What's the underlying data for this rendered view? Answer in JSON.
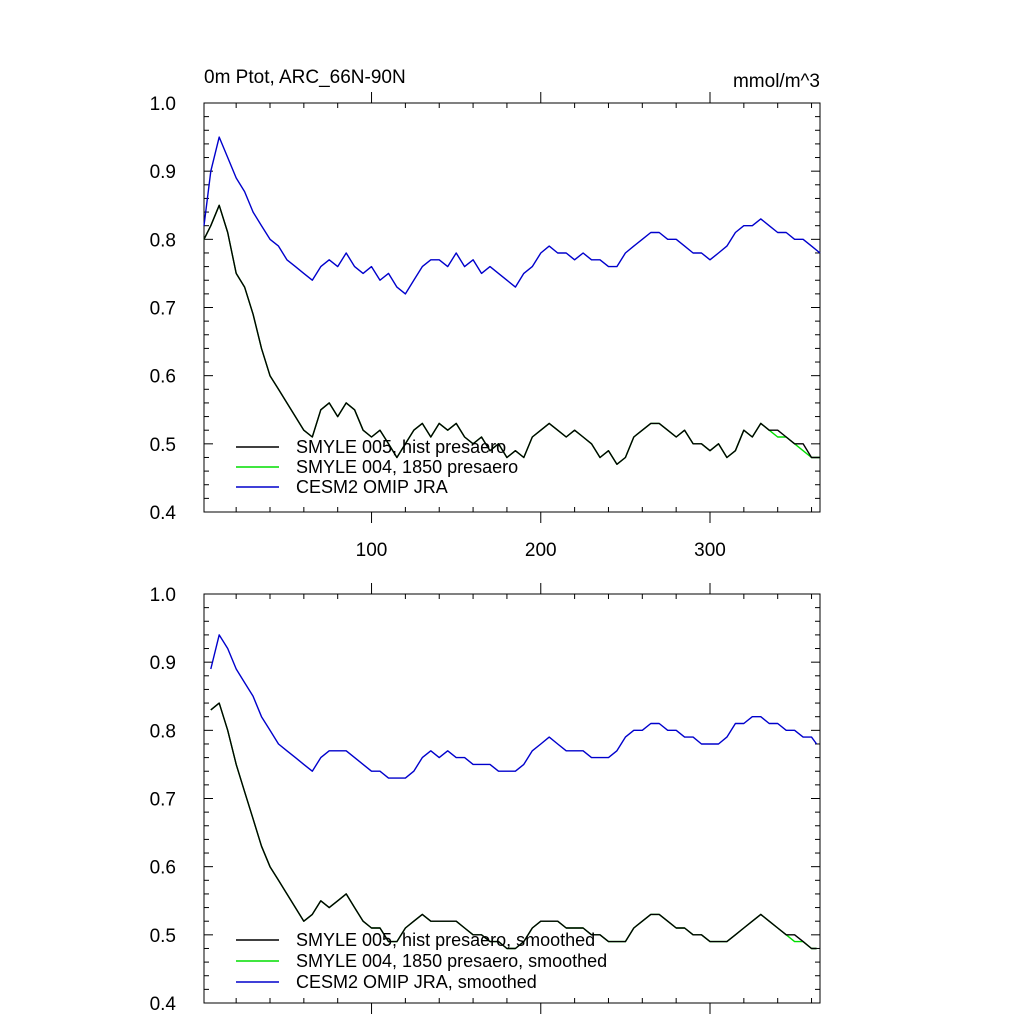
{
  "chart_data": [
    {
      "type": "line",
      "title": "0m Ptot, ARC_66N-90N",
      "units": "mmol/m^3",
      "xlim": [
        1,
        365
      ],
      "ylim": [
        0.4,
        1.0
      ],
      "x_major_ticks": [
        100,
        200,
        300
      ],
      "x_tick_labels": [
        "100",
        "200",
        "300"
      ],
      "y_major_ticks": [
        0.4,
        0.5,
        0.6,
        0.7,
        0.8,
        0.9,
        1.0
      ],
      "y_tick_labels": [
        "0.4",
        "0.5",
        "0.6",
        "0.7",
        "0.8",
        "0.9",
        "1.0"
      ],
      "legend_position": "bottom-left",
      "series": [
        {
          "name": "SMYLE 005, hist presaero",
          "color": "#000000",
          "x": [
            1,
            5,
            10,
            15,
            20,
            25,
            30,
            35,
            40,
            45,
            50,
            55,
            60,
            65,
            70,
            75,
            80,
            85,
            90,
            95,
            100,
            105,
            110,
            115,
            120,
            125,
            130,
            135,
            140,
            145,
            150,
            155,
            160,
            165,
            170,
            175,
            180,
            185,
            190,
            195,
            200,
            205,
            210,
            215,
            220,
            225,
            230,
            235,
            240,
            245,
            250,
            255,
            260,
            265,
            270,
            275,
            280,
            285,
            290,
            295,
            300,
            305,
            310,
            315,
            320,
            325,
            330,
            335,
            340,
            345,
            350,
            355,
            360,
            365
          ],
          "y": [
            0.8,
            0.82,
            0.85,
            0.81,
            0.75,
            0.73,
            0.69,
            0.64,
            0.6,
            0.58,
            0.56,
            0.54,
            0.52,
            0.51,
            0.55,
            0.56,
            0.54,
            0.56,
            0.55,
            0.52,
            0.51,
            0.52,
            0.5,
            0.48,
            0.5,
            0.52,
            0.53,
            0.51,
            0.53,
            0.52,
            0.53,
            0.51,
            0.5,
            0.51,
            0.49,
            0.5,
            0.48,
            0.49,
            0.48,
            0.51,
            0.52,
            0.53,
            0.52,
            0.51,
            0.52,
            0.51,
            0.5,
            0.48,
            0.49,
            0.47,
            0.48,
            0.51,
            0.52,
            0.53,
            0.53,
            0.52,
            0.51,
            0.52,
            0.5,
            0.5,
            0.49,
            0.5,
            0.48,
            0.49,
            0.52,
            0.51,
            0.53,
            0.52,
            0.52,
            0.51,
            0.5,
            0.5,
            0.48,
            0.48
          ]
        },
        {
          "name": "SMYLE 004, 1850 presaero",
          "color": "#00dd00",
          "x": [
            1,
            5,
            10,
            15,
            20,
            25,
            30,
            35,
            40,
            45,
            50,
            55,
            60,
            65,
            70,
            75,
            80,
            85,
            90,
            95,
            100,
            105,
            110,
            115,
            120,
            125,
            130,
            135,
            140,
            145,
            150,
            155,
            160,
            165,
            170,
            175,
            180,
            185,
            190,
            195,
            200,
            205,
            210,
            215,
            220,
            225,
            230,
            235,
            240,
            245,
            250,
            255,
            260,
            265,
            270,
            275,
            280,
            285,
            290,
            295,
            300,
            305,
            310,
            315,
            320,
            325,
            330,
            335,
            340,
            345,
            350,
            355,
            360,
            365
          ],
          "y": [
            0.8,
            0.82,
            0.85,
            0.81,
            0.75,
            0.73,
            0.69,
            0.64,
            0.6,
            0.58,
            0.56,
            0.54,
            0.52,
            0.51,
            0.55,
            0.56,
            0.54,
            0.56,
            0.55,
            0.52,
            0.51,
            0.52,
            0.5,
            0.48,
            0.5,
            0.52,
            0.53,
            0.51,
            0.53,
            0.52,
            0.53,
            0.51,
            0.5,
            0.51,
            0.49,
            0.5,
            0.48,
            0.49,
            0.48,
            0.51,
            0.52,
            0.53,
            0.52,
            0.51,
            0.52,
            0.51,
            0.5,
            0.48,
            0.49,
            0.47,
            0.48,
            0.51,
            0.52,
            0.53,
            0.53,
            0.52,
            0.51,
            0.52,
            0.5,
            0.5,
            0.49,
            0.5,
            0.48,
            0.49,
            0.52,
            0.51,
            0.53,
            0.52,
            0.51,
            0.51,
            0.5,
            0.49,
            0.48,
            0.48
          ]
        },
        {
          "name": "CESM2 OMIP JRA",
          "color": "#0000cc",
          "x": [
            1,
            5,
            10,
            15,
            20,
            25,
            30,
            35,
            40,
            45,
            50,
            55,
            60,
            65,
            70,
            75,
            80,
            85,
            90,
            95,
            100,
            105,
            110,
            115,
            120,
            125,
            130,
            135,
            140,
            145,
            150,
            155,
            160,
            165,
            170,
            175,
            180,
            185,
            190,
            195,
            200,
            205,
            210,
            215,
            220,
            225,
            230,
            235,
            240,
            245,
            250,
            255,
            260,
            265,
            270,
            275,
            280,
            285,
            290,
            295,
            300,
            305,
            310,
            315,
            320,
            325,
            330,
            335,
            340,
            345,
            350,
            355,
            360,
            365
          ],
          "y": [
            0.82,
            0.9,
            0.95,
            0.92,
            0.89,
            0.87,
            0.84,
            0.82,
            0.8,
            0.79,
            0.77,
            0.76,
            0.75,
            0.74,
            0.76,
            0.77,
            0.76,
            0.78,
            0.76,
            0.75,
            0.76,
            0.74,
            0.75,
            0.73,
            0.72,
            0.74,
            0.76,
            0.77,
            0.77,
            0.76,
            0.78,
            0.76,
            0.77,
            0.75,
            0.76,
            0.75,
            0.74,
            0.73,
            0.75,
            0.76,
            0.78,
            0.79,
            0.78,
            0.78,
            0.77,
            0.78,
            0.77,
            0.77,
            0.76,
            0.76,
            0.78,
            0.79,
            0.8,
            0.81,
            0.81,
            0.8,
            0.8,
            0.79,
            0.78,
            0.78,
            0.77,
            0.78,
            0.79,
            0.81,
            0.82,
            0.82,
            0.83,
            0.82,
            0.81,
            0.81,
            0.8,
            0.8,
            0.79,
            0.78
          ]
        }
      ]
    },
    {
      "type": "line",
      "xlim": [
        1,
        365
      ],
      "ylim": [
        0.4,
        1.0
      ],
      "x_major_ticks": [
        100,
        200,
        300
      ],
      "y_major_ticks": [
        0.4,
        0.5,
        0.6,
        0.7,
        0.8,
        0.9,
        1.0
      ],
      "y_tick_labels": [
        "0.4",
        "0.5",
        "0.6",
        "0.7",
        "0.8",
        "0.9",
        "1.0"
      ],
      "legend_position": "bottom-left",
      "series": [
        {
          "name": "SMYLE 005, hist presaero, smoothed",
          "color": "#000000",
          "x": [
            5,
            10,
            15,
            20,
            25,
            30,
            35,
            40,
            45,
            50,
            55,
            60,
            65,
            70,
            75,
            80,
            85,
            90,
            95,
            100,
            105,
            110,
            115,
            120,
            125,
            130,
            135,
            140,
            145,
            150,
            155,
            160,
            165,
            170,
            175,
            180,
            185,
            190,
            195,
            200,
            205,
            210,
            215,
            220,
            225,
            230,
            235,
            240,
            245,
            250,
            255,
            260,
            265,
            270,
            275,
            280,
            285,
            290,
            295,
            300,
            305,
            310,
            315,
            320,
            325,
            330,
            335,
            340,
            345,
            350,
            355,
            360,
            363
          ],
          "y": [
            0.83,
            0.84,
            0.8,
            0.75,
            0.71,
            0.67,
            0.63,
            0.6,
            0.58,
            0.56,
            0.54,
            0.52,
            0.53,
            0.55,
            0.54,
            0.55,
            0.56,
            0.54,
            0.52,
            0.51,
            0.51,
            0.49,
            0.49,
            0.51,
            0.52,
            0.53,
            0.52,
            0.52,
            0.52,
            0.52,
            0.51,
            0.5,
            0.5,
            0.49,
            0.49,
            0.48,
            0.48,
            0.49,
            0.51,
            0.52,
            0.52,
            0.52,
            0.51,
            0.51,
            0.51,
            0.5,
            0.5,
            0.49,
            0.49,
            0.49,
            0.51,
            0.52,
            0.53,
            0.53,
            0.52,
            0.51,
            0.51,
            0.5,
            0.5,
            0.49,
            0.49,
            0.49,
            0.5,
            0.51,
            0.52,
            0.53,
            0.52,
            0.51,
            0.5,
            0.5,
            0.49,
            0.48,
            0.48
          ]
        },
        {
          "name": "SMYLE 004, 1850 presaero, smoothed",
          "color": "#00dd00",
          "x": [
            5,
            10,
            15,
            20,
            25,
            30,
            35,
            40,
            45,
            50,
            55,
            60,
            65,
            70,
            75,
            80,
            85,
            90,
            95,
            100,
            105,
            110,
            115,
            120,
            125,
            130,
            135,
            140,
            145,
            150,
            155,
            160,
            165,
            170,
            175,
            180,
            185,
            190,
            195,
            200,
            205,
            210,
            215,
            220,
            225,
            230,
            235,
            240,
            245,
            250,
            255,
            260,
            265,
            270,
            275,
            280,
            285,
            290,
            295,
            300,
            305,
            310,
            315,
            320,
            325,
            330,
            335,
            340,
            345,
            350,
            355,
            360,
            363
          ],
          "y": [
            0.83,
            0.84,
            0.8,
            0.75,
            0.71,
            0.67,
            0.63,
            0.6,
            0.58,
            0.56,
            0.54,
            0.52,
            0.53,
            0.55,
            0.54,
            0.55,
            0.56,
            0.54,
            0.52,
            0.51,
            0.51,
            0.49,
            0.49,
            0.51,
            0.52,
            0.53,
            0.52,
            0.52,
            0.52,
            0.52,
            0.51,
            0.5,
            0.5,
            0.49,
            0.49,
            0.48,
            0.48,
            0.49,
            0.51,
            0.52,
            0.52,
            0.52,
            0.51,
            0.51,
            0.51,
            0.5,
            0.5,
            0.49,
            0.49,
            0.49,
            0.51,
            0.52,
            0.53,
            0.53,
            0.52,
            0.51,
            0.51,
            0.5,
            0.5,
            0.49,
            0.49,
            0.49,
            0.5,
            0.51,
            0.52,
            0.53,
            0.52,
            0.51,
            0.5,
            0.49,
            0.49,
            0.48,
            0.48
          ]
        },
        {
          "name": "CESM2 OMIP JRA, smoothed",
          "color": "#0000cc",
          "x": [
            5,
            10,
            15,
            20,
            25,
            30,
            35,
            40,
            45,
            50,
            55,
            60,
            65,
            70,
            75,
            80,
            85,
            90,
            95,
            100,
            105,
            110,
            115,
            120,
            125,
            130,
            135,
            140,
            145,
            150,
            155,
            160,
            165,
            170,
            175,
            180,
            185,
            190,
            195,
            200,
            205,
            210,
            215,
            220,
            225,
            230,
            235,
            240,
            245,
            250,
            255,
            260,
            265,
            270,
            275,
            280,
            285,
            290,
            295,
            300,
            305,
            310,
            315,
            320,
            325,
            330,
            335,
            340,
            345,
            350,
            355,
            360,
            363
          ],
          "y": [
            0.89,
            0.94,
            0.92,
            0.89,
            0.87,
            0.85,
            0.82,
            0.8,
            0.78,
            0.77,
            0.76,
            0.75,
            0.74,
            0.76,
            0.77,
            0.77,
            0.77,
            0.76,
            0.75,
            0.74,
            0.74,
            0.73,
            0.73,
            0.73,
            0.74,
            0.76,
            0.77,
            0.76,
            0.77,
            0.76,
            0.76,
            0.75,
            0.75,
            0.75,
            0.74,
            0.74,
            0.74,
            0.75,
            0.77,
            0.78,
            0.79,
            0.78,
            0.77,
            0.77,
            0.77,
            0.76,
            0.76,
            0.76,
            0.77,
            0.79,
            0.8,
            0.8,
            0.81,
            0.81,
            0.8,
            0.8,
            0.79,
            0.79,
            0.78,
            0.78,
            0.78,
            0.79,
            0.81,
            0.81,
            0.82,
            0.82,
            0.81,
            0.81,
            0.8,
            0.8,
            0.79,
            0.79,
            0.78
          ]
        }
      ]
    }
  ]
}
